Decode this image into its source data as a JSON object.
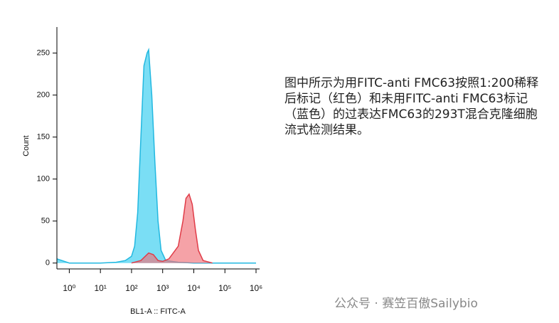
{
  "chart_data": {
    "type": "area",
    "xlabel": "BL1-A :: FITC-A",
    "ylabel": "Count",
    "xscale": "log",
    "xlim": [
      0.4,
      1300000
    ],
    "ylim": [
      -7,
      281
    ],
    "xticks": [
      {
        "value": 1,
        "label": "10⁰"
      },
      {
        "value": 10,
        "label": "10¹"
      },
      {
        "value": 100,
        "label": "10²"
      },
      {
        "value": 1000,
        "label": "10³"
      },
      {
        "value": 10000,
        "label": "10⁴"
      },
      {
        "value": 100000,
        "label": "10⁵"
      },
      {
        "value": 1000000,
        "label": "10⁶"
      }
    ],
    "yticks": [
      0,
      50,
      100,
      150,
      200,
      250
    ],
    "series": [
      {
        "color": "#33ccf0",
        "line": "#22b8e0",
        "x": [
          0.4,
          1,
          10,
          32,
          63,
          100,
          126,
          158,
          200,
          251,
          316,
          355,
          447,
          562,
          708,
          891,
          1259,
          3162,
          10000,
          1000000
        ],
        "values": [
          5,
          0,
          0,
          1,
          3,
          8,
          20,
          60,
          150,
          235,
          250,
          254,
          200,
          120,
          50,
          15,
          3,
          1,
          0,
          0
        ]
      },
      {
        "color": "#f07078",
        "line": "#e03c48",
        "x": [
          100,
          200,
          355,
          501,
          708,
          1000,
          1585,
          3162,
          4467,
          5623,
          7079,
          8913,
          11220,
          14125,
          19953,
          39811
        ],
        "values": [
          0,
          3,
          12,
          10,
          3,
          2,
          5,
          20,
          50,
          77,
          82,
          70,
          40,
          15,
          3,
          0
        ]
      }
    ]
  },
  "caption": "图中所示为用FITC-anti FMC63按照1:200稀释后标记（红色）和未用FITC-anti FMC63标记（蓝色）的过表达FMC63的293T混合克隆细胞流式检测结果。",
  "watermark": "公众号 · 赛笠百傲Sailybio"
}
